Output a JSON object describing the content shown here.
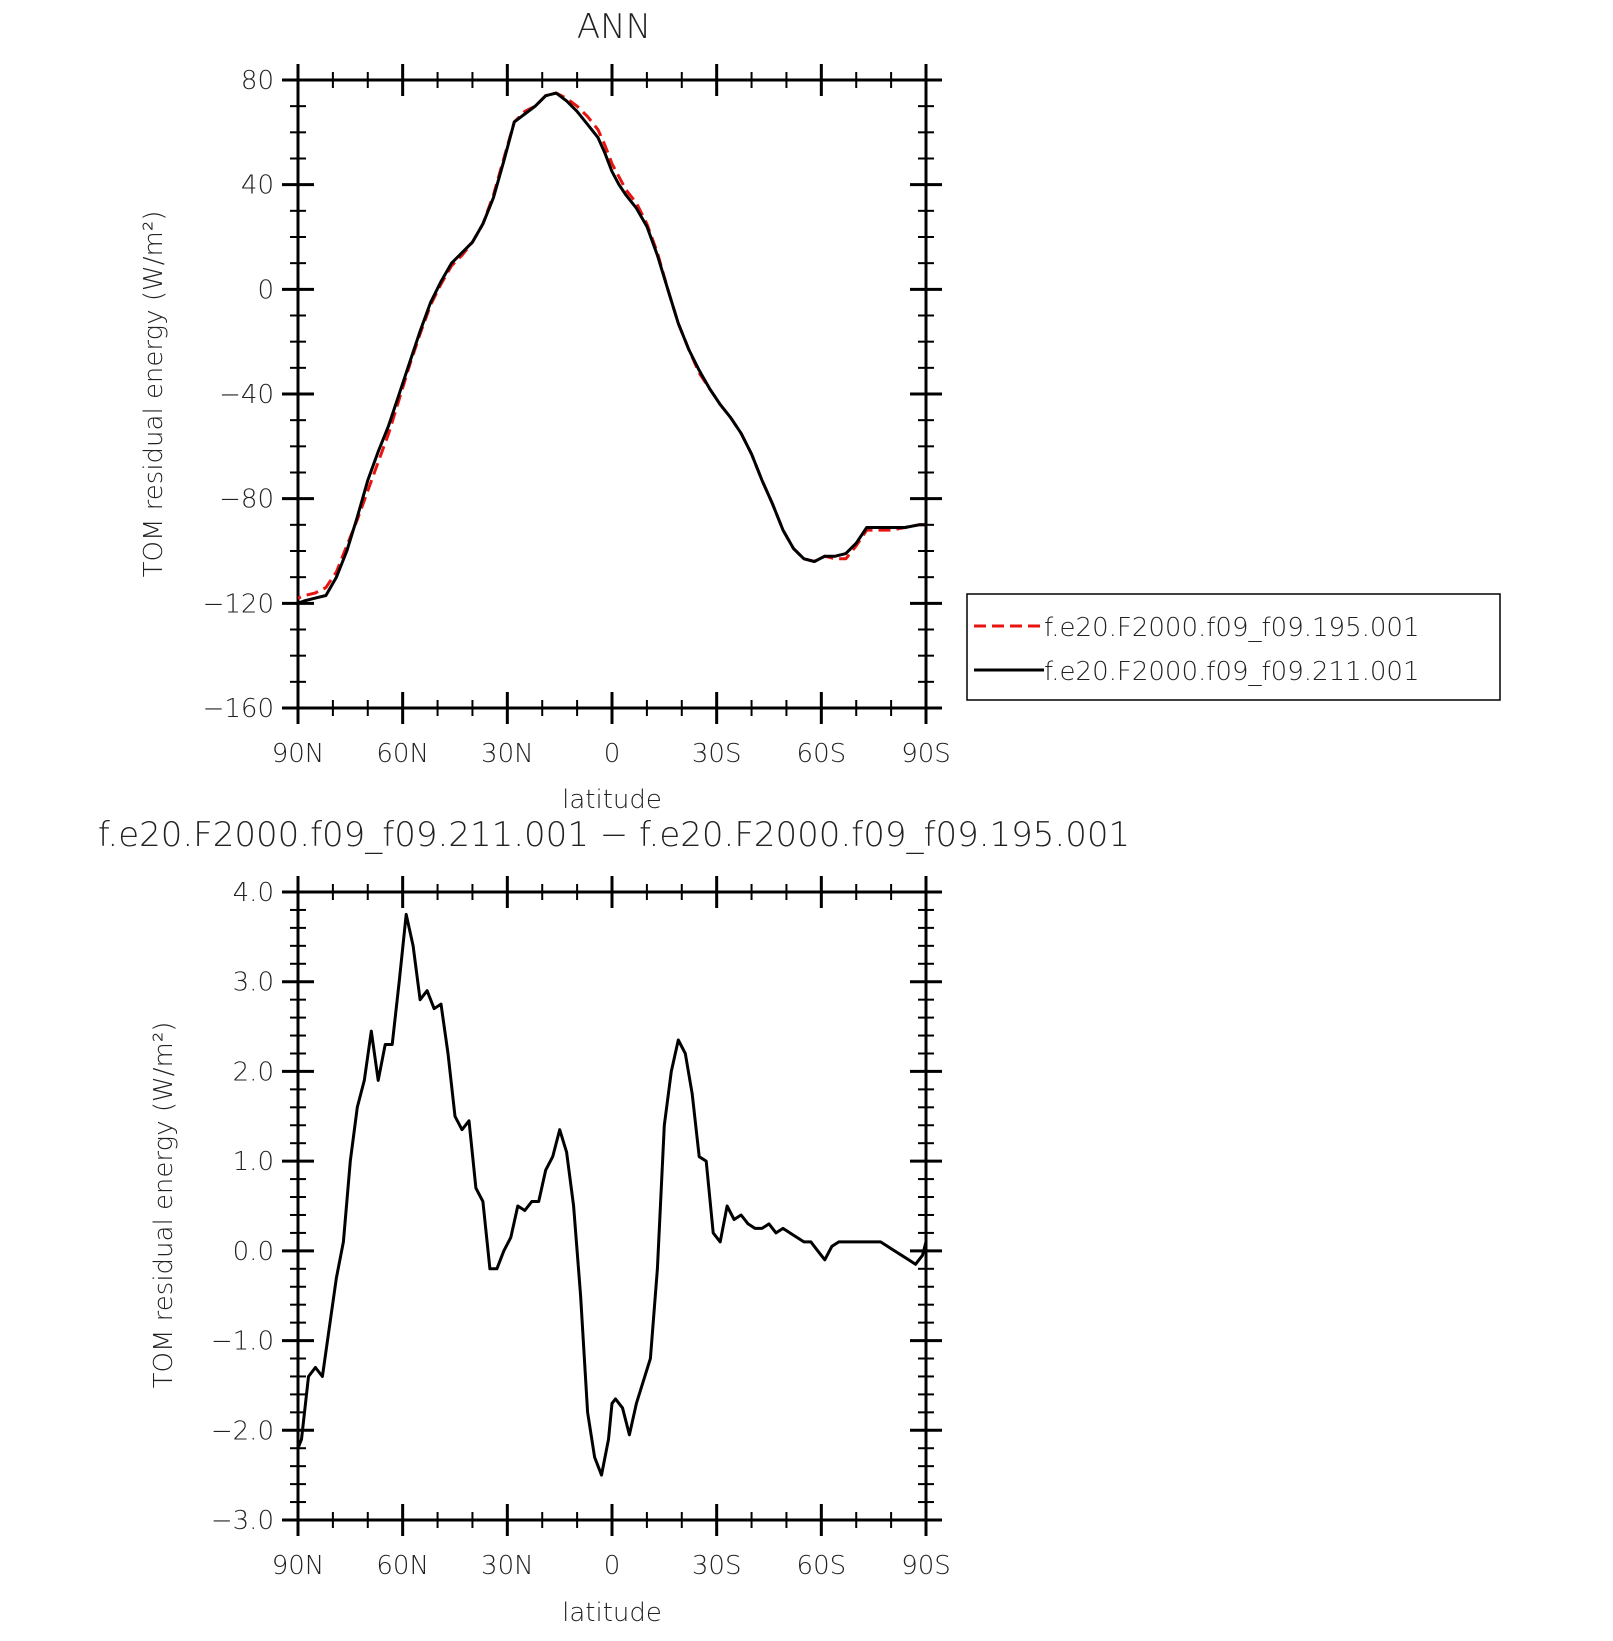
{
  "colors": {
    "case1": "#e8140f",
    "case2": "#000000",
    "axis": "#000000",
    "text": "#222222"
  },
  "legend": {
    "entries": [
      {
        "label": "f.e20.F2000.f09_f09.195.001",
        "color": "#e8140f",
        "dash": "dashed"
      },
      {
        "label": "f.e20.F2000.f09_f09.211.001",
        "color": "#000000",
        "dash": "solid"
      }
    ]
  },
  "chart_data": [
    {
      "type": "line",
      "title": "ANN",
      "xlabel": "latitude",
      "ylabel": "TOM residual energy (W/m²)",
      "xlim": [
        90,
        -90
      ],
      "ylim": [
        -160,
        80
      ],
      "xticks": [
        90,
        60,
        30,
        0,
        -30,
        -60,
        -90
      ],
      "xtick_labels": [
        "90N",
        "60N",
        "30N",
        "0",
        "30S",
        "60S",
        "90S"
      ],
      "yticks": [
        80,
        40,
        0,
        -40,
        -80,
        -120,
        -160
      ],
      "ytick_labels": [
        "80",
        "40",
        "0",
        "−40",
        "−80",
        "−120",
        "−160"
      ],
      "series": [
        {
          "name": "f.e20.F2000.f09_f09.195.001",
          "color": "#e8140f",
          "dash": "dashed",
          "x": [
            -90,
            -88,
            -84,
            -80,
            -76,
            -73,
            -70,
            -67,
            -64,
            -61,
            -58,
            -55,
            -52,
            -49,
            -46,
            -43,
            -40,
            -37,
            -34,
            -31,
            -28,
            -25,
            -22,
            -19,
            -16,
            -13,
            -10,
            -7,
            -4,
            -2,
            0,
            2,
            4,
            7,
            10,
            13,
            16,
            19,
            22,
            25,
            28,
            31,
            34,
            37,
            40,
            43,
            46,
            49,
            52,
            55,
            58,
            61,
            64,
            67,
            70,
            73,
            76,
            79,
            82,
            85,
            88,
            90
          ],
          "y": [
            -118,
            -117,
            -116,
            -114,
            -108,
            -98,
            -88,
            -77,
            -66,
            -55,
            -42,
            -29,
            -17,
            -6,
            2,
            9,
            13,
            18,
            25,
            36,
            50,
            64,
            68,
            70,
            74,
            75,
            73,
            70,
            66,
            61,
            55,
            48,
            43,
            38,
            33,
            25,
            14,
            0,
            -13,
            -23,
            -32,
            -38,
            -44,
            -49,
            -55,
            -63,
            -73,
            -82,
            -92,
            -99,
            -103,
            -104,
            -102,
            -103,
            -103,
            -98,
            -92,
            -92,
            -92,
            -91,
            -90,
            -90
          ],
          "y_note_reversed": true
        },
        {
          "name": "f.e20.F2000.f09_f09.211.001",
          "color": "#000000",
          "dash": "solid",
          "x": [
            -90,
            -88,
            -84,
            -80,
            -76,
            -73,
            -70,
            -67,
            -64,
            -61,
            -58,
            -55,
            -52,
            -49,
            -46,
            -43,
            -40,
            -37,
            -34,
            -31,
            -28,
            -25,
            -22,
            -19,
            -16,
            -13,
            -10,
            -7,
            -4,
            -2,
            0,
            2,
            4,
            7,
            10,
            13,
            16,
            19,
            22,
            25,
            28,
            31,
            34,
            37,
            40,
            43,
            46,
            49,
            52,
            55,
            58,
            61,
            64,
            67,
            70,
            73,
            76,
            79,
            82,
            85,
            88,
            90
          ],
          "y": [
            -120,
            -119,
            -118,
            -117,
            -110,
            -100,
            -87,
            -73,
            -62,
            -52,
            -40,
            -28,
            -16,
            -5,
            3,
            10,
            14,
            18,
            25,
            35,
            49,
            64,
            67,
            70,
            74,
            75,
            72,
            68,
            63,
            58,
            52,
            45,
            40,
            36,
            31,
            24,
            13,
            0,
            -13,
            -23,
            -31,
            -38,
            -44,
            -49,
            -55,
            -63,
            -73,
            -82,
            -92,
            -99,
            -103,
            -104,
            -102,
            -102,
            -101,
            -97,
            -91,
            -91,
            -91,
            -91,
            -90,
            -90
          ]
        }
      ]
    },
    {
      "type": "line",
      "title": "f.e20.F2000.f09_f09.211.001 − f.e20.F2000.f09_f09.195.001",
      "xlabel": "latitude",
      "ylabel": "TOM residual energy (W/m²)",
      "xlim": [
        90,
        -90
      ],
      "ylim": [
        -3.0,
        4.0
      ],
      "xticks": [
        90,
        60,
        30,
        0,
        -30,
        -60,
        -90
      ],
      "xtick_labels": [
        "90N",
        "60N",
        "30N",
        "0",
        "30S",
        "60S",
        "90S"
      ],
      "yticks": [
        4,
        3,
        2,
        1,
        0,
        -1,
        -2,
        -3
      ],
      "ytick_labels": [
        "4.0",
        "3.0",
        "2.0",
        "1.0",
        "0.0",
        "−1.0",
        "−2.0",
        "−3.0"
      ],
      "series": [
        {
          "name": "difference",
          "color": "#000000",
          "dash": "solid",
          "x": [
            90,
            89,
            87,
            85,
            83,
            81,
            79,
            77,
            75,
            73,
            71,
            69,
            67,
            65,
            63,
            61,
            59,
            57,
            55,
            53,
            51,
            49,
            47,
            45,
            43,
            41,
            39,
            37,
            35,
            33,
            31,
            29,
            27,
            25,
            23,
            21,
            19,
            17,
            15,
            13,
            11,
            9,
            7,
            5,
            3,
            1,
            0,
            -1,
            -3,
            -5,
            -7,
            -9,
            -11,
            -13,
            -15,
            -17,
            -19,
            -21,
            -23,
            -25,
            -27,
            -29,
            -31,
            -33,
            -35,
            -37,
            -39,
            -41,
            -43,
            -45,
            -47,
            -49,
            -51,
            -53,
            -55,
            -57,
            -59,
            -61,
            -63,
            -65,
            -67,
            -69,
            -71,
            -73,
            -75,
            -77,
            -79,
            -81,
            -83,
            -85,
            -87,
            -89,
            -90
          ],
          "y": [
            -2.2,
            -2.1,
            -1.4,
            -1.3,
            -1.4,
            -0.85,
            -0.3,
            0.1,
            1.0,
            1.6,
            1.9,
            2.45,
            1.9,
            2.3,
            2.3,
            3.0,
            3.75,
            3.4,
            2.8,
            2.9,
            2.7,
            2.75,
            2.2,
            1.5,
            1.35,
            1.45,
            0.7,
            0.55,
            -0.2,
            -0.2,
            0.0,
            0.15,
            0.5,
            0.45,
            0.55,
            0.55,
            0.9,
            1.05,
            1.35,
            1.1,
            0.5,
            -0.5,
            -1.8,
            -2.3,
            -2.5,
            -2.1,
            -1.7,
            -1.65,
            -1.75,
            -2.05,
            -1.7,
            -1.45,
            -1.2,
            -0.2,
            1.4,
            2.0,
            2.35,
            2.2,
            1.75,
            1.05,
            1.0,
            0.2,
            0.1,
            0.5,
            0.35,
            0.4,
            0.3,
            0.25,
            0.25,
            0.3,
            0.2,
            0.25,
            0.2,
            0.15,
            0.1,
            0.1,
            0.0,
            -0.1,
            0.05,
            0.1,
            0.1,
            0.1,
            0.1,
            0.1,
            0.1,
            0.1,
            0.05,
            0.0,
            -0.05,
            -0.1,
            -0.15,
            -0.05,
            0.1
          ]
        }
      ]
    }
  ]
}
